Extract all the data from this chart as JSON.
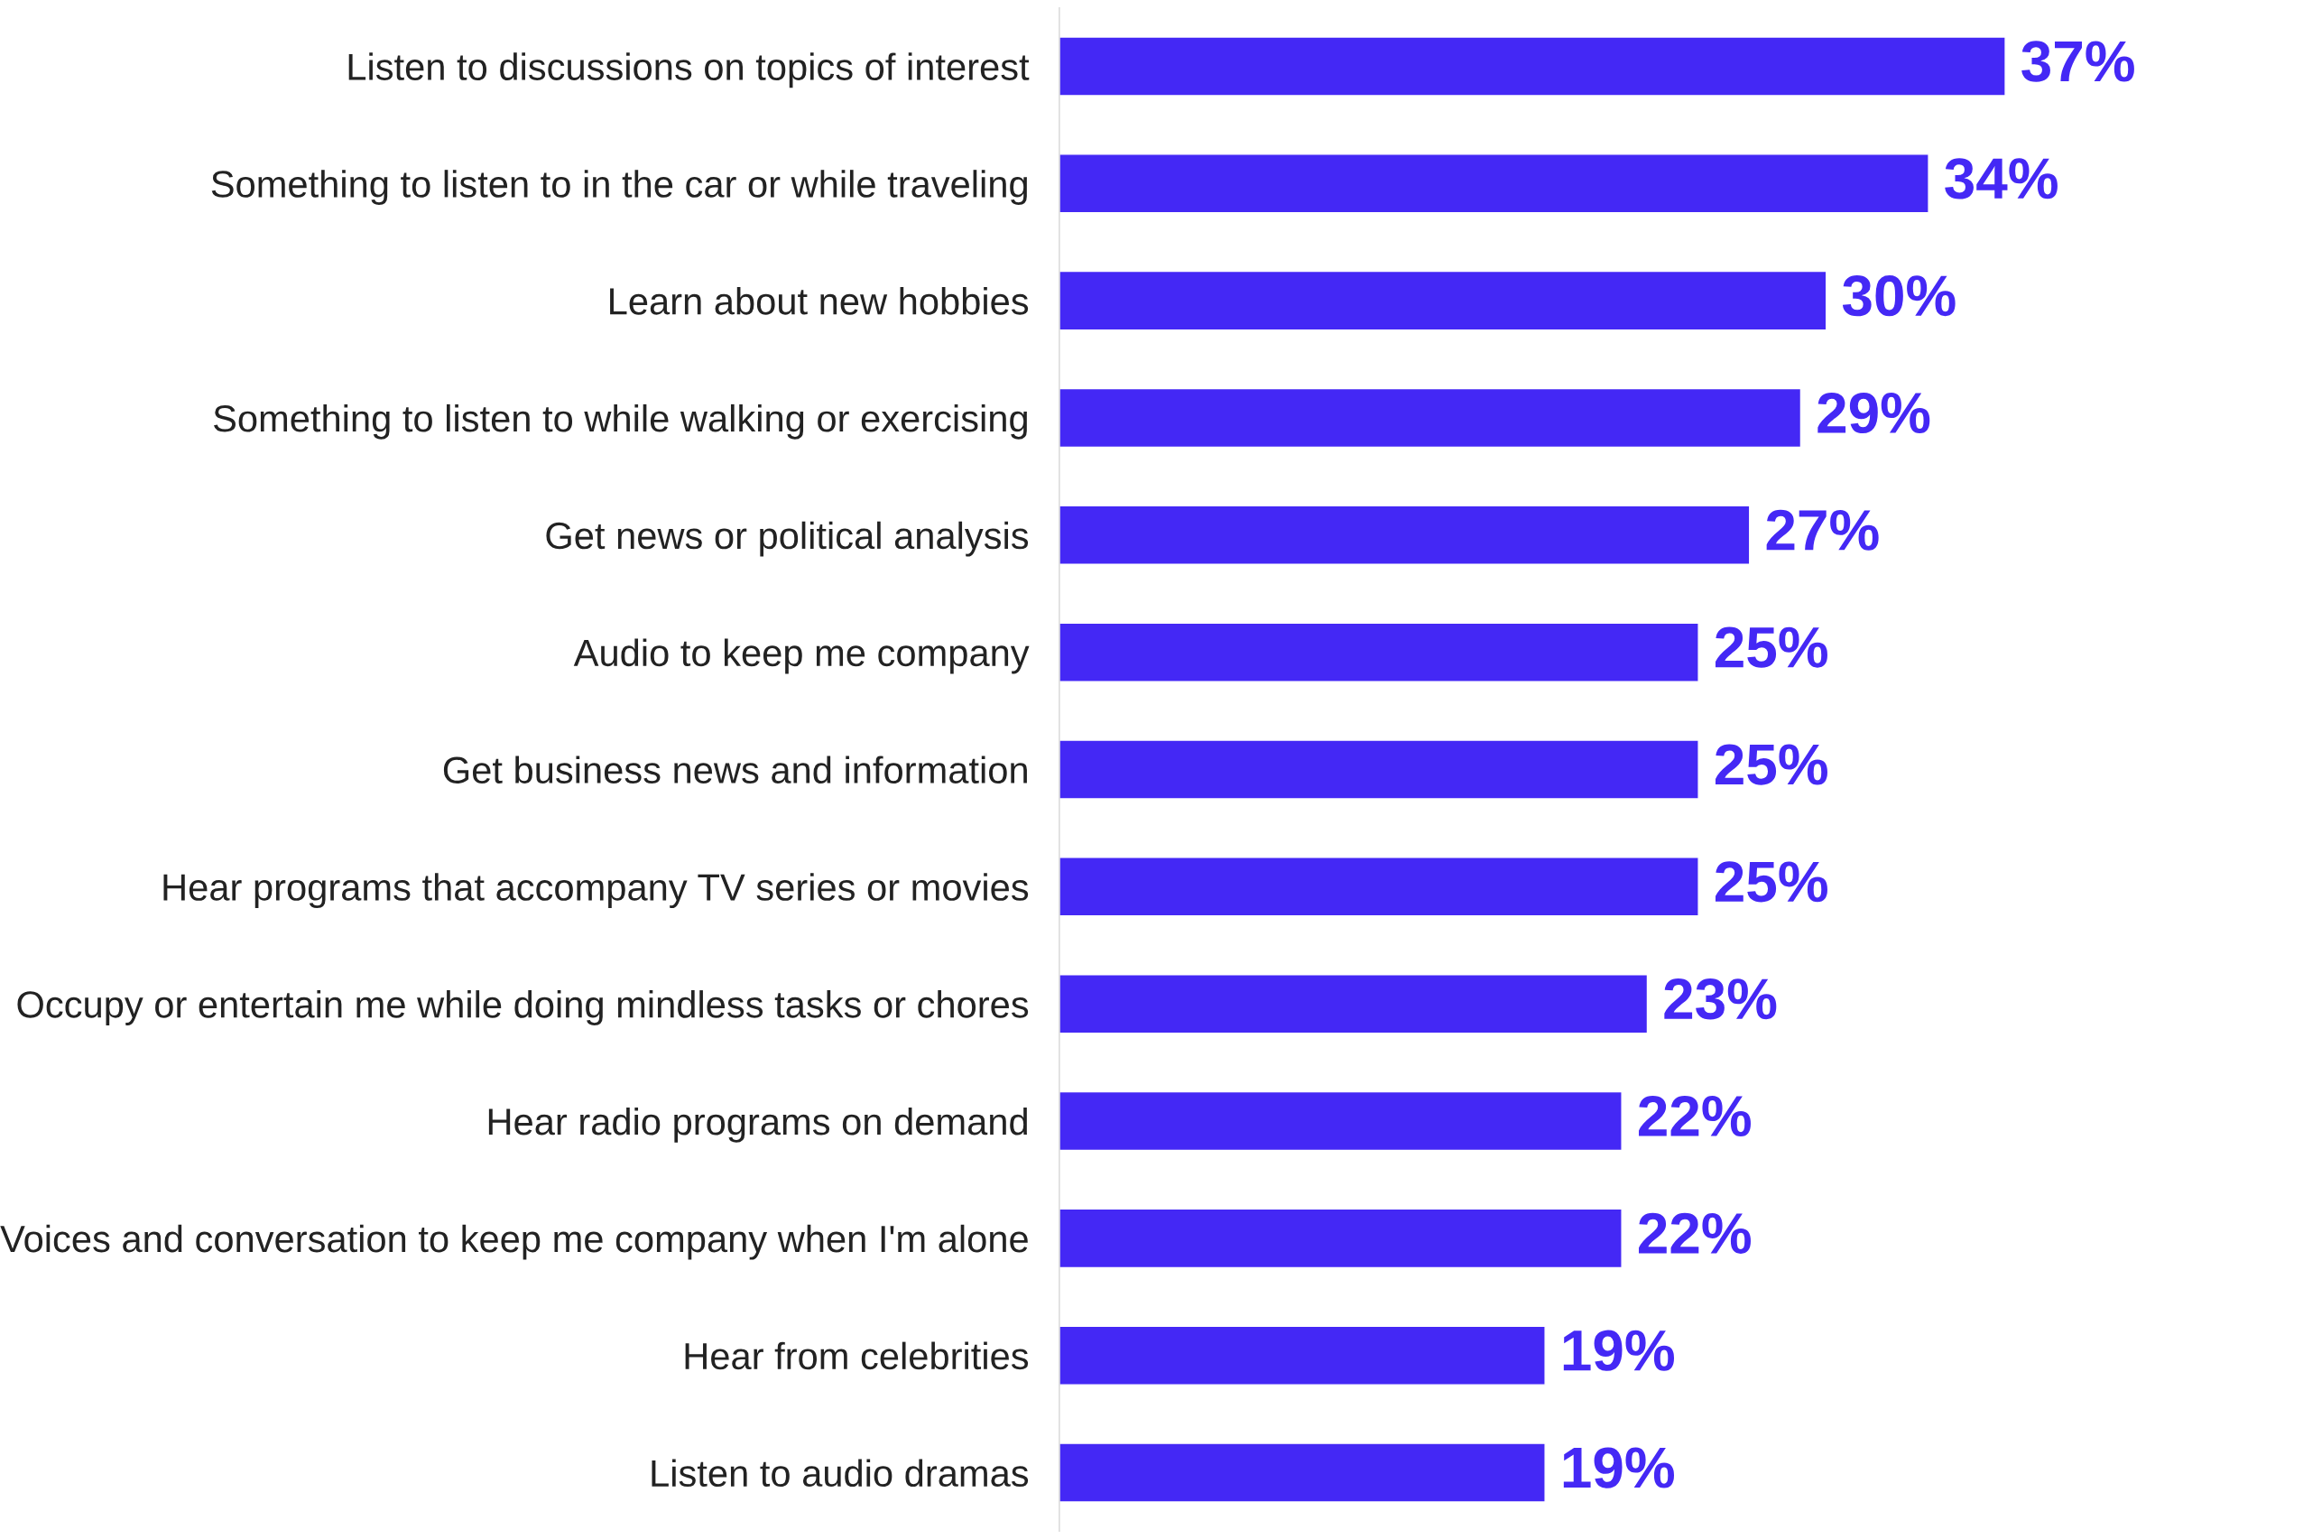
{
  "chart_data": {
    "type": "bar",
    "orientation": "horizontal",
    "categories": [
      "Listen to discussions on topics of interest",
      "Something to listen to in the car or while traveling",
      "Learn about new hobbies",
      "Something to listen to while walking or exercising",
      "Get news or political analysis",
      "Audio to keep me company",
      "Get business news and information",
      "Hear programs that accompany TV series or movies",
      "Occupy or entertain me while doing mindless tasks or chores",
      "Hear radio programs on demand",
      "Voices and conversation to keep me company when I'm alone",
      "Hear from celebrities",
      "Listen to audio dramas"
    ],
    "values": [
      37,
      34,
      30,
      29,
      27,
      25,
      25,
      25,
      23,
      22,
      22,
      19,
      19
    ],
    "value_labels": [
      "37%",
      "34%",
      "30%",
      "29%",
      "27%",
      "25%",
      "25%",
      "25%",
      "23%",
      "22%",
      "22%",
      "19%",
      "19%"
    ],
    "color": "#4428f5",
    "tick_labels": "y",
    "grid": false,
    "legend": false
  }
}
